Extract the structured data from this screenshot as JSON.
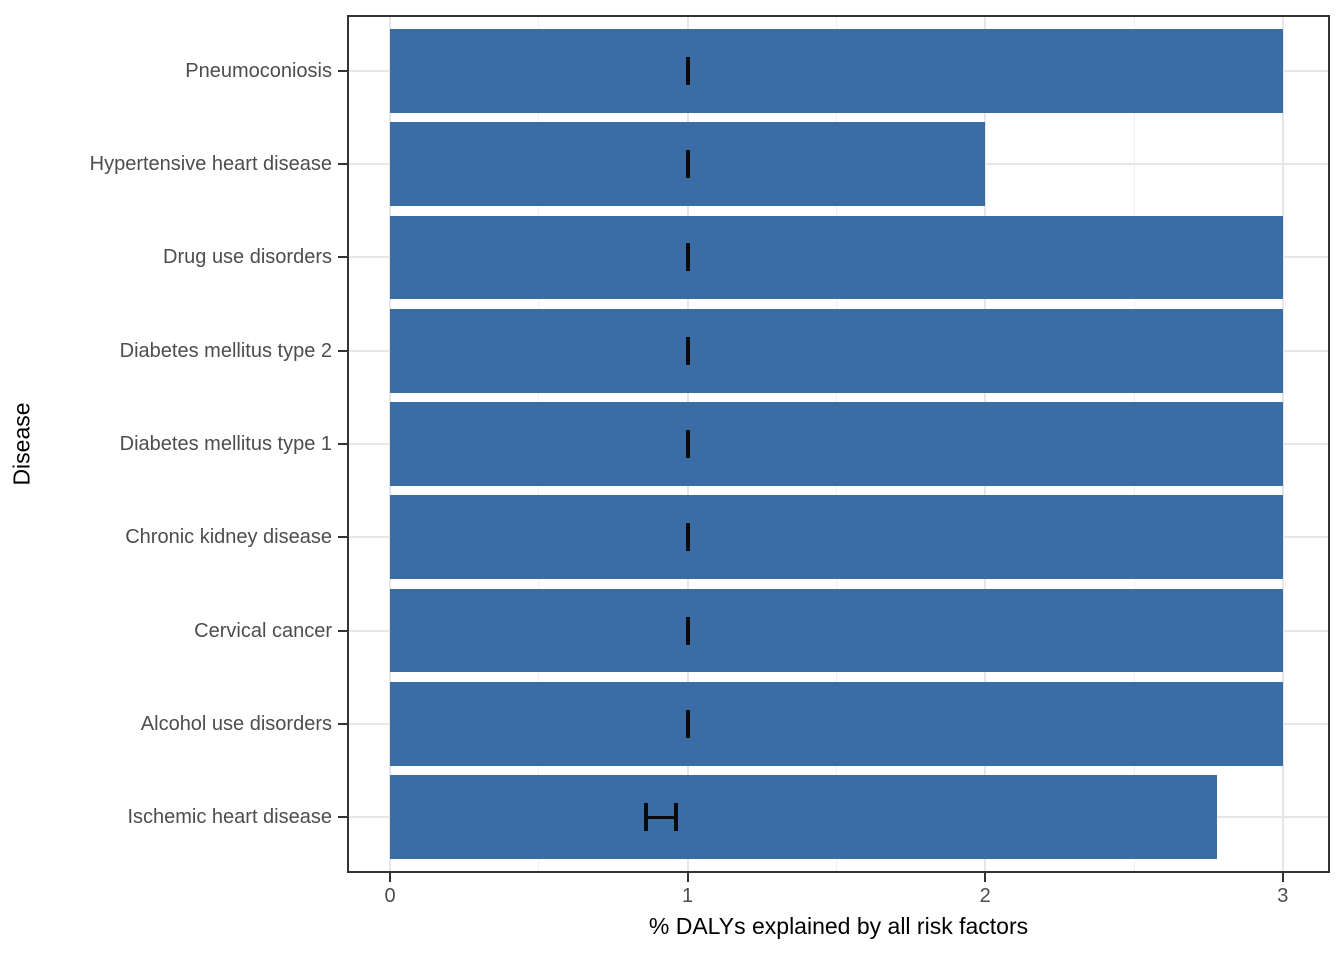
{
  "chart_data": {
    "type": "bar",
    "orientation": "horizontal",
    "title": "",
    "xlabel": "% DALYs explained by all risk factors",
    "ylabel": "Disease",
    "categories": [
      "Pneumoconiosis",
      "Hypertensive heart disease",
      "Drug use disorders",
      "Diabetes mellitus type 2",
      "Diabetes mellitus type 1",
      "Chronic kidney disease",
      "Cervical cancer",
      "Alcohol use disorders",
      "Ischemic heart disease"
    ],
    "values": [
      3.0,
      2.0,
      3.0,
      3.0,
      3.0,
      3.0,
      3.0,
      3.0,
      2.78
    ],
    "error_bars": [
      {
        "low": 1.0,
        "high": 1.0
      },
      {
        "low": 1.0,
        "high": 1.0
      },
      {
        "low": 1.0,
        "high": 1.0
      },
      {
        "low": 1.0,
        "high": 1.0
      },
      {
        "low": 1.0,
        "high": 1.0
      },
      {
        "low": 1.0,
        "high": 1.0
      },
      {
        "low": 1.0,
        "high": 1.0
      },
      {
        "low": 1.0,
        "high": 1.0
      },
      {
        "low": 0.86,
        "high": 0.96
      }
    ],
    "xlim": [
      0,
      3
    ],
    "x_major_ticks": [
      0,
      1,
      2,
      3
    ],
    "x_tick_labels": [
      "0",
      "1",
      "2",
      "3"
    ],
    "x_minor_ticks": [
      0.5,
      1.5,
      2.5
    ],
    "legend": "none",
    "grid": "major-and-minor",
    "colors": {
      "bar": "#3A6DA6",
      "error_bar": "#0A0A0A",
      "grid_major": "#E6E6E6",
      "grid_minor": "#F0F0F0",
      "panel_border": "#333333",
      "tick_text": "#4D4D4D",
      "axis_title_text": "#000000",
      "background": "#FFFFFF"
    }
  }
}
